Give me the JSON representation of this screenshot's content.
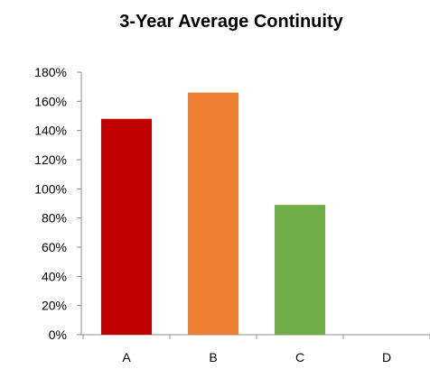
{
  "chart_data": {
    "type": "bar",
    "title": "3-Year Average Continuity",
    "categories": [
      "A",
      "B",
      "C",
      "D"
    ],
    "values": [
      148,
      166,
      89,
      0
    ],
    "colors": [
      "#c00000",
      "#ed7d31",
      "#70ad47",
      "#4472c4"
    ],
    "ylim": [
      0,
      180
    ],
    "ytick_values": [
      0,
      20,
      40,
      60,
      80,
      100,
      120,
      140,
      160,
      180
    ],
    "ytick_labels": [
      "0%",
      "20%",
      "40%",
      "60%",
      "80%",
      "100%",
      "120%",
      "140%",
      "160%",
      "180%"
    ],
    "grid": false,
    "legend": "none",
    "xlabel": "",
    "ylabel": ""
  }
}
